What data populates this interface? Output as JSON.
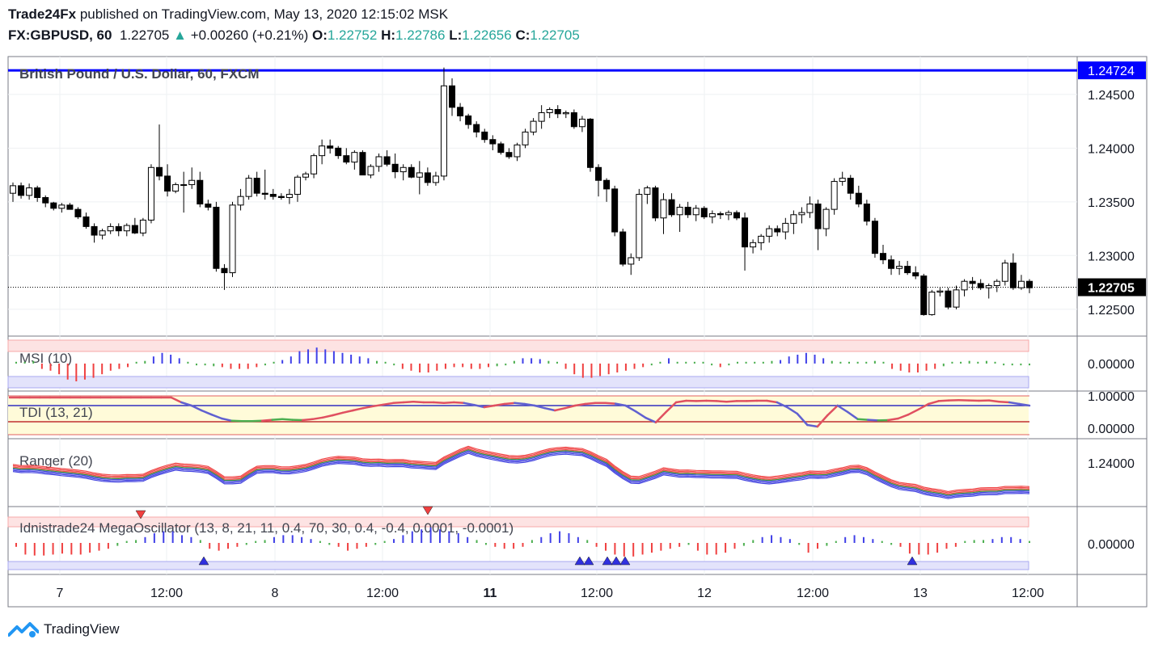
{
  "header": {
    "publisher": "Trade24Fx",
    "published_text": "published on TradingView.com, May 13, 2020 12:15:02 MSK",
    "symbol": "FX:GBPUSD, 60",
    "last": "1.22705",
    "change": "+0.00260 (+0.21%)",
    "o_label": "O:",
    "o_value": "1.22752",
    "h_label": "H:",
    "h_value": "1.22786",
    "l_label": "L:",
    "l_value": "1.22656",
    "c_label": "C:",
    "c_value": "1.22705"
  },
  "footer": {
    "logo_text": "TradingView"
  },
  "colors": {
    "up_fill": "#ffffff",
    "down_fill": "#000000",
    "blue_line": "#0000ff",
    "green": "#26a69a"
  },
  "chart_data": {
    "type": "candlestick",
    "title": "British Pound / U.S. Dollar, 60, FXCM",
    "price_axis_ticks": [
      "1.24500",
      "1.24000",
      "1.23500",
      "1.23000",
      "1.22500"
    ],
    "price_range": [
      1.2225,
      1.248
    ],
    "horizontal_line": {
      "value": 1.24724,
      "label": "1.24724"
    },
    "last_price": {
      "value": 1.22705,
      "label": "1.22705"
    },
    "time_axis_ticks": [
      "7",
      "12:00",
      "8",
      "12:00",
      "11",
      "12:00",
      "12",
      "12:00",
      "13",
      "12:00"
    ],
    "time_axis_bold": [
      false,
      false,
      false,
      false,
      true,
      false,
      false,
      false,
      false,
      false
    ],
    "candles": [
      [
        1.2358,
        1.2368,
        1.235,
        1.2365
      ],
      [
        1.2365,
        1.2368,
        1.2353,
        1.2356
      ],
      [
        1.2356,
        1.2367,
        1.2352,
        1.2363
      ],
      [
        1.2363,
        1.2365,
        1.235,
        1.2354
      ],
      [
        1.2354,
        1.2356,
        1.2345,
        1.2349
      ],
      [
        1.2349,
        1.235,
        1.2342,
        1.2344
      ],
      [
        1.2344,
        1.2349,
        1.234,
        1.2347
      ],
      [
        1.2347,
        1.2349,
        1.2343,
        1.2343
      ],
      [
        1.2343,
        1.2345,
        1.2334,
        1.2336
      ],
      [
        1.2336,
        1.234,
        1.2325,
        1.2327
      ],
      [
        1.2327,
        1.233,
        1.2312,
        1.2319
      ],
      [
        1.2319,
        1.2325,
        1.2315,
        1.2323
      ],
      [
        1.2323,
        1.233,
        1.232,
        1.2327
      ],
      [
        1.2327,
        1.233,
        1.2318,
        1.2323
      ],
      [
        1.2323,
        1.233,
        1.2318,
        1.2328
      ],
      [
        1.2328,
        1.2335,
        1.232,
        1.2321
      ],
      [
        1.2321,
        1.2335,
        1.2318,
        1.2333
      ],
      [
        1.2333,
        1.2385,
        1.233,
        1.2382
      ],
      [
        1.2382,
        1.2422,
        1.237,
        1.2374
      ],
      [
        1.2374,
        1.2385,
        1.2355,
        1.236
      ],
      [
        1.236,
        1.2368,
        1.2358,
        1.2366
      ],
      [
        1.2366,
        1.2378,
        1.234,
        1.2366
      ],
      [
        1.2366,
        1.2382,
        1.2362,
        1.237
      ],
      [
        1.237,
        1.2378,
        1.2345,
        1.2348
      ],
      [
        1.2348,
        1.2352,
        1.2342,
        1.2345
      ],
      [
        1.2345,
        1.235,
        1.2285,
        1.2288
      ],
      [
        1.2288,
        1.2292,
        1.2268,
        1.2284
      ],
      [
        1.2284,
        1.235,
        1.228,
        1.2347
      ],
      [
        1.2347,
        1.2362,
        1.2342,
        1.2355
      ],
      [
        1.2355,
        1.2375,
        1.2352,
        1.2372
      ],
      [
        1.2372,
        1.2378,
        1.2355,
        1.2358
      ],
      [
        1.2358,
        1.238,
        1.2352,
        1.2357
      ],
      [
        1.2357,
        1.2362,
        1.2352,
        1.2355
      ],
      [
        1.2355,
        1.2358,
        1.2352,
        1.2354
      ],
      [
        1.2354,
        1.2362,
        1.2348,
        1.2357
      ],
      [
        1.2357,
        1.2375,
        1.235,
        1.2373
      ],
      [
        1.2373,
        1.2378,
        1.237,
        1.2376
      ],
      [
        1.2376,
        1.2395,
        1.2372,
        1.2393
      ],
      [
        1.2393,
        1.2408,
        1.2385,
        1.2402
      ],
      [
        1.2402,
        1.2408,
        1.2395,
        1.24
      ],
      [
        1.24,
        1.2402,
        1.239,
        1.2393
      ],
      [
        1.2393,
        1.24,
        1.2385,
        1.2387
      ],
      [
        1.2387,
        1.2398,
        1.238,
        1.2396
      ],
      [
        1.2396,
        1.2398,
        1.2375,
        1.2375
      ],
      [
        1.2375,
        1.2385,
        1.2372,
        1.2383
      ],
      [
        1.2383,
        1.2395,
        1.2378,
        1.2392
      ],
      [
        1.2392,
        1.2398,
        1.2383,
        1.2385
      ],
      [
        1.2385,
        1.2395,
        1.2372,
        1.2378
      ],
      [
        1.2378,
        1.2385,
        1.237,
        1.2382
      ],
      [
        1.2382,
        1.2385,
        1.2372,
        1.2373
      ],
      [
        1.2373,
        1.2388,
        1.2357,
        1.2377
      ],
      [
        1.2377,
        1.2382,
        1.2365,
        1.2368
      ],
      [
        1.2368,
        1.2378,
        1.2365,
        1.2374
      ],
      [
        1.2374,
        1.2475,
        1.237,
        1.2458
      ],
      [
        1.2458,
        1.2465,
        1.243,
        1.2438
      ],
      [
        1.2438,
        1.2442,
        1.2425,
        1.243
      ],
      [
        1.243,
        1.2432,
        1.2418,
        1.2422
      ],
      [
        1.2422,
        1.2425,
        1.241,
        1.2415
      ],
      [
        1.2415,
        1.2418,
        1.2405,
        1.2408
      ],
      [
        1.2408,
        1.2412,
        1.2398,
        1.2404
      ],
      [
        1.2404,
        1.2406,
        1.2394,
        1.2396
      ],
      [
        1.2396,
        1.24,
        1.239,
        1.2392
      ],
      [
        1.2392,
        1.2405,
        1.2388,
        1.2403
      ],
      [
        1.2403,
        1.2418,
        1.24,
        1.2415
      ],
      [
        1.2415,
        1.2428,
        1.2412,
        1.2425
      ],
      [
        1.2425,
        1.244,
        1.2418,
        1.2433
      ],
      [
        1.2433,
        1.2438,
        1.2428,
        1.2436
      ],
      [
        1.2436,
        1.244,
        1.2428,
        1.2432
      ],
      [
        1.2432,
        1.2435,
        1.2428,
        1.2433
      ],
      [
        1.2433,
        1.2436,
        1.2418,
        1.242
      ],
      [
        1.242,
        1.243,
        1.2415,
        1.2427
      ],
      [
        1.2427,
        1.2428,
        1.2378,
        1.2382
      ],
      [
        1.2382,
        1.2385,
        1.2355,
        1.237
      ],
      [
        1.237,
        1.2372,
        1.235,
        1.2362
      ],
      [
        1.2362,
        1.2365,
        1.2318,
        1.2322
      ],
      [
        1.2322,
        1.2325,
        1.229,
        1.2292
      ],
      [
        1.2292,
        1.2302,
        1.2282,
        1.2298
      ],
      [
        1.2298,
        1.2362,
        1.2295,
        1.2357
      ],
      [
        1.2357,
        1.2365,
        1.2348,
        1.2363
      ],
      [
        1.2363,
        1.2365,
        1.2332,
        1.2335
      ],
      [
        1.2335,
        1.2358,
        1.232,
        1.2352
      ],
      [
        1.2352,
        1.2358,
        1.2336,
        1.2338
      ],
      [
        1.2338,
        1.2348,
        1.2322,
        1.2345
      ],
      [
        1.2345,
        1.235,
        1.2335,
        1.2338
      ],
      [
        1.2338,
        1.2347,
        1.2332,
        1.2344
      ],
      [
        1.2344,
        1.2346,
        1.2334,
        1.2336
      ],
      [
        1.2336,
        1.2342,
        1.233,
        1.2339
      ],
      [
        1.2339,
        1.2341,
        1.2334,
        1.2338
      ],
      [
        1.2338,
        1.2342,
        1.2333,
        1.234
      ],
      [
        1.234,
        1.2342,
        1.2333,
        1.2335
      ],
      [
        1.2335,
        1.234,
        1.2286,
        1.2308
      ],
      [
        1.2308,
        1.2315,
        1.2302,
        1.2312
      ],
      [
        1.2312,
        1.232,
        1.2305,
        1.2318
      ],
      [
        1.2318,
        1.2328,
        1.2312,
        1.2325
      ],
      [
        1.2325,
        1.2328,
        1.2318,
        1.2322
      ],
      [
        1.2322,
        1.2335,
        1.2315,
        1.233
      ],
      [
        1.233,
        1.2342,
        1.232,
        1.2338
      ],
      [
        1.2338,
        1.2345,
        1.233,
        1.234
      ],
      [
        1.234,
        1.2355,
        1.2335,
        1.2348
      ],
      [
        1.2348,
        1.2352,
        1.2305,
        1.2325
      ],
      [
        1.2325,
        1.2345,
        1.2318,
        1.2343
      ],
      [
        1.2343,
        1.2372,
        1.2338,
        1.2369
      ],
      [
        1.2369,
        1.2378,
        1.2365,
        1.2372
      ],
      [
        1.2372,
        1.2375,
        1.2352,
        1.2358
      ],
      [
        1.2358,
        1.2365,
        1.2345,
        1.2348
      ],
      [
        1.2348,
        1.2352,
        1.2328,
        1.2332
      ],
      [
        1.2332,
        1.2335,
        1.2298,
        1.2302
      ],
      [
        1.2302,
        1.231,
        1.2292,
        1.2296
      ],
      [
        1.2296,
        1.23,
        1.2282,
        1.2288
      ],
      [
        1.2288,
        1.2295,
        1.2282,
        1.229
      ],
      [
        1.229,
        1.2295,
        1.2282,
        1.2284
      ],
      [
        1.2284,
        1.229,
        1.2278,
        1.2281
      ],
      [
        1.2281,
        1.2283,
        1.2244,
        1.2245
      ],
      [
        1.2245,
        1.2268,
        1.2244,
        1.2266
      ],
      [
        1.2266,
        1.227,
        1.2262,
        1.2267
      ],
      [
        1.2267,
        1.227,
        1.225,
        1.2252
      ],
      [
        1.2252,
        1.2272,
        1.225,
        1.2268
      ],
      [
        1.2268,
        1.2278,
        1.2262,
        1.2276
      ],
      [
        1.2276,
        1.228,
        1.2268,
        1.2274
      ],
      [
        1.2274,
        1.2278,
        1.2268,
        1.227
      ],
      [
        1.227,
        1.2274,
        1.226,
        1.2272
      ],
      [
        1.2272,
        1.2278,
        1.2266,
        1.2276
      ],
      [
        1.2276,
        1.2296,
        1.2272,
        1.2293
      ],
      [
        1.2293,
        1.2302,
        1.2268,
        1.227
      ],
      [
        1.227,
        1.2282,
        1.2268,
        1.2276
      ],
      [
        1.2276,
        1.2278,
        1.2265,
        1.227
      ]
    ],
    "indicators": {
      "msi": {
        "label": "MSI (10)",
        "axis_tick": "0.00000",
        "values": [
          0.2,
          0.2,
          0.3,
          -0.6,
          -0.8,
          -1.2,
          -1.8,
          -2.0,
          -1.8,
          -1.6,
          -1.2,
          -0.8,
          -0.6,
          -0.4,
          0.2,
          0.3,
          0.8,
          1.2,
          1.0,
          0.6,
          0.2,
          -0.2,
          -0.2,
          -0.3,
          -0.4,
          -0.6,
          -0.6,
          -0.6,
          -0.4,
          -0.2,
          0.2,
          0.4,
          0.8,
          1.4,
          1.6,
          1.8,
          1.6,
          1.4,
          1.2,
          1.0,
          0.8,
          0.6,
          0.3,
          0.2,
          -0.2,
          -0.6,
          -0.8,
          -1.0,
          -1.0,
          -0.8,
          -0.6,
          -0.4,
          -0.4,
          -0.6,
          -0.6,
          -0.4,
          -0.3,
          -0.2,
          0.3,
          0.6,
          0.6,
          0.5,
          0.3,
          0.2,
          -0.6,
          -1.2,
          -1.6,
          -1.6,
          -1.4,
          -1.2,
          -1.0,
          -0.8,
          -0.6,
          -0.4,
          -0.2,
          0.2,
          0.6,
          0.2,
          0.2,
          0.2,
          0.2,
          -0.2,
          -0.4,
          -0.2,
          0.2,
          0.2,
          0.2,
          0.2,
          0.3,
          0.4,
          0.8,
          1.0,
          1.2,
          1.0,
          0.6,
          0.3,
          0.2,
          0.2,
          0.2,
          0.2,
          0.3,
          0.2,
          -0.6,
          -0.8,
          -1.0,
          -1.0,
          -0.8,
          -0.6,
          -0.3,
          0.2,
          0.2,
          0.3,
          0.2,
          0.3,
          0.2,
          -0.2,
          -0.2,
          -0.2,
          -0.2
        ]
      },
      "tdi": {
        "label": "TDI (13, 21)",
        "axis_ticks": [
          "1.00000",
          "0.00000"
        ],
        "upper": 0.7,
        "lower": 0.2,
        "values": [
          0.95,
          0.95,
          0.95,
          0.95,
          0.95,
          0.95,
          0.95,
          0.95,
          0.95,
          0.95,
          0.95,
          0.95,
          0.95,
          0.95,
          0.95,
          0.95,
          0.95,
          0.8,
          0.7,
          0.55,
          0.42,
          0.3,
          0.23,
          0.22,
          0.22,
          0.23,
          0.26,
          0.28,
          0.26,
          0.25,
          0.28,
          0.33,
          0.4,
          0.48,
          0.55,
          0.62,
          0.68,
          0.73,
          0.78,
          0.8,
          0.82,
          0.8,
          0.8,
          0.78,
          0.8,
          0.78,
          0.72,
          0.65,
          0.7,
          0.75,
          0.78,
          0.75,
          0.7,
          0.62,
          0.55,
          0.62,
          0.7,
          0.75,
          0.78,
          0.78,
          0.76,
          0.7,
          0.52,
          0.32,
          0.18,
          0.5,
          0.8,
          0.85,
          0.84,
          0.85,
          0.84,
          0.82,
          0.84,
          0.84,
          0.85,
          0.85,
          0.8,
          0.65,
          0.45,
          0.1,
          0.05,
          0.4,
          0.7,
          0.5,
          0.28,
          0.26,
          0.24,
          0.25,
          0.3,
          0.42,
          0.58,
          0.75,
          0.84,
          0.86,
          0.87,
          0.86,
          0.85,
          0.86,
          0.82,
          0.8,
          0.75,
          0.7
        ]
      },
      "ranger": {
        "label": "Ranger (20)",
        "axis_tick": "1.24000"
      },
      "mega": {
        "label": "Idnistrade24 MegaOscillator (13, 8, 21, 11, 0.4, 70, 30, 0.4, -0.4, 0.0001, -0.0001)",
        "axis_tick": "0.00000",
        "values": [
          -0.4,
          -1.2,
          -1.3,
          -1.3,
          -1.2,
          -1.1,
          -1.2,
          -1.2,
          -1.0,
          -0.8,
          -0.6,
          -0.3,
          0.2,
          0.3,
          0.6,
          1.0,
          1.2,
          1.2,
          0.8,
          0.6,
          0.3,
          -0.6,
          -0.8,
          -0.6,
          -0.4,
          -0.2,
          0.2,
          0.3,
          0.6,
          0.8,
          0.8,
          0.6,
          0.4,
          0.2,
          -0.2,
          -0.4,
          -0.8,
          -0.6,
          -0.4,
          -0.2,
          0.2,
          0.4,
          0.8,
          1.2,
          1.4,
          1.6,
          1.4,
          1.2,
          1.0,
          0.6,
          0.3,
          -0.2,
          -0.4,
          -0.6,
          -0.6,
          -0.4,
          0.3,
          0.6,
          1.0,
          1.2,
          1.0,
          0.6,
          0.3,
          -0.4,
          -0.8,
          -1.2,
          -1.4,
          -1.4,
          -1.2,
          -1.0,
          -0.8,
          -0.6,
          -0.4,
          -0.2,
          -0.8,
          -1.2,
          -1.2,
          -1.0,
          -0.6,
          -0.3,
          0.3,
          0.6,
          0.8,
          0.6,
          0.4,
          -0.2,
          -1.0,
          -0.6,
          -0.3,
          0.2,
          0.6,
          0.8,
          0.6,
          0.4,
          0.2,
          -0.2,
          -0.4,
          -1.1,
          -1.2,
          -1.2,
          -1.0,
          -0.6,
          -0.4,
          0.2,
          0.3,
          0.3,
          0.4,
          0.6,
          0.6,
          0.4,
          0.2
        ]
      }
    }
  }
}
